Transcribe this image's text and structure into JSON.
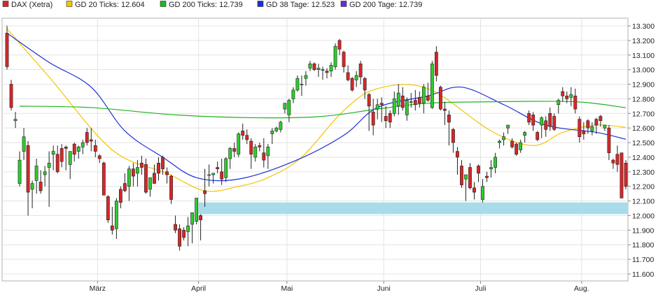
{
  "legend": [
    {
      "label": "DAX (Xetra)",
      "color": "#d62728"
    },
    {
      "label": "GD 20 Ticks: 12.604",
      "color": "#f5c400"
    },
    {
      "label": "GD 200 Ticks: 12.739",
      "color": "#1fb51f"
    },
    {
      "label": "GD 38 Tage: 12.523",
      "color": "#1a2fd6"
    },
    {
      "label": "GD 200 Tage: 12.739",
      "color": "#6a2bd0"
    }
  ],
  "chart_data": {
    "type": "candlestick",
    "title": "",
    "y_axis": {
      "position": "right",
      "min": 11600,
      "max": 13300,
      "ticks": [
        13300,
        13200,
        13100,
        13000,
        12900,
        12800,
        12700,
        12600,
        12500,
        12400,
        12300,
        12200,
        12100,
        12000,
        11900,
        11800,
        11700,
        11600
      ],
      "tick_labels": [
        "13.300",
        "13.200",
        "13.100",
        "13.000",
        "12.900",
        "12.800",
        "12.700",
        "12.600",
        "12.500",
        "12.400",
        "12.300",
        "12.200",
        "12.100",
        "12.000",
        "11.900",
        "11.800",
        "11.700",
        "11.600"
      ]
    },
    "x_axis": {
      "month_labels": [
        {
          "label": "März",
          "index": 22
        },
        {
          "label": "April",
          "index": 46
        },
        {
          "label": "Mai",
          "index": 67
        },
        {
          "label": "Juni",
          "index": 90
        },
        {
          "label": "Juli",
          "index": 113
        },
        {
          "label": "Aug.",
          "index": 137
        }
      ],
      "count": 148
    },
    "grid": true,
    "support_zone": {
      "from": 12010,
      "to": 12090,
      "start_index": 46,
      "color": "#a8dcea"
    },
    "candles": [
      [
        13250,
        13300,
        13000,
        13020
      ],
      [
        12900,
        12930,
        12720,
        12740
      ],
      [
        12650,
        12710,
        12600,
        12660
      ],
      [
        12220,
        12440,
        12200,
        12380
      ],
      [
        12440,
        12600,
        12380,
        12540
      ],
      [
        12480,
        12510,
        12000,
        12160
      ],
      [
        12180,
        12240,
        12050,
        12220
      ],
      [
        12240,
        12390,
        12150,
        12340
      ],
      [
        12230,
        12310,
        12150,
        12170
      ],
      [
        12280,
        12340,
        12200,
        12300
      ],
      [
        12330,
        12440,
        12060,
        12360
      ],
      [
        12420,
        12480,
        12310,
        12440
      ],
      [
        12420,
        12480,
        12290,
        12300
      ],
      [
        12460,
        12490,
        12330,
        12370
      ],
      [
        12470,
        12480,
        12310,
        12460
      ],
      [
        12350,
        12440,
        12250,
        12440
      ],
      [
        12490,
        12500,
        12370,
        12420
      ],
      [
        12440,
        12480,
        12390,
        12470
      ],
      [
        12470,
        12520,
        12420,
        12500
      ],
      [
        12570,
        12600,
        12480,
        12500
      ],
      [
        12520,
        12600,
        12440,
        12510
      ],
      [
        12480,
        12520,
        12400,
        12440
      ],
      [
        12410,
        12420,
        12360,
        12390
      ],
      [
        12360,
        12370,
        12150,
        12140
      ],
      [
        12130,
        12140,
        11950,
        11970
      ],
      [
        11930,
        12060,
        11870,
        11900
      ],
      [
        11910,
        12120,
        11840,
        12100
      ],
      [
        12180,
        12200,
        12050,
        12090
      ],
      [
        12220,
        12290,
        12160,
        12170
      ],
      [
        12200,
        12340,
        12100,
        12320
      ],
      [
        12320,
        12360,
        12200,
        12270
      ],
      [
        12290,
        12380,
        12200,
        12330
      ],
      [
        12360,
        12410,
        12280,
        12330
      ],
      [
        12350,
        12390,
        12150,
        12160
      ],
      [
        12180,
        12260,
        12130,
        12260
      ],
      [
        12290,
        12350,
        12220,
        12220
      ],
      [
        12360,
        12400,
        12240,
        12290
      ],
      [
        12400,
        12410,
        12280,
        12320
      ],
      [
        12300,
        12330,
        12220,
        12280
      ],
      [
        12270,
        12280,
        12080,
        12110
      ],
      [
        11940,
        12000,
        11880,
        11900
      ],
      [
        11910,
        11940,
        11760,
        11790
      ],
      [
        11900,
        11920,
        11830,
        11850
      ],
      [
        11890,
        11990,
        11790,
        11930
      ],
      [
        11940,
        12020,
        11810,
        12020
      ],
      [
        11960,
        12120,
        11940,
        12120
      ],
      [
        12000,
        12010,
        11830,
        11970
      ],
      [
        12170,
        12320,
        12060,
        12150
      ],
      [
        12280,
        12350,
        12200,
        12280
      ],
      [
        12280,
        12290,
        12220,
        12290
      ],
      [
        12330,
        12370,
        12290,
        12320
      ],
      [
        12300,
        12390,
        12210,
        12250
      ],
      [
        12260,
        12400,
        12230,
        12390
      ],
      [
        12390,
        12470,
        12320,
        12460
      ],
      [
        12460,
        12500,
        12400,
        12440
      ],
      [
        12420,
        12570,
        12400,
        12560
      ],
      [
        12580,
        12630,
        12520,
        12550
      ],
      [
        12550,
        12590,
        12490,
        12520
      ],
      [
        12510,
        12530,
        12320,
        12420
      ],
      [
        12400,
        12490,
        12370,
        12470
      ],
      [
        12480,
        12500,
        12440,
        12470
      ],
      [
        12430,
        12530,
        12330,
        12380
      ],
      [
        12410,
        12490,
        12320,
        12470
      ],
      [
        12560,
        12600,
        12490,
        12580
      ],
      [
        12580,
        12610,
        12570,
        12600
      ],
      [
        12590,
        12650,
        12570,
        12640
      ],
      [
        12730,
        12760,
        12700,
        12770
      ],
      [
        12690,
        12800,
        12640,
        12790
      ],
      [
        12800,
        12880,
        12770,
        12860
      ],
      [
        12860,
        12960,
        12850,
        12940
      ],
      [
        12900,
        12960,
        12820,
        12900
      ],
      [
        12940,
        12990,
        12890,
        12960
      ],
      [
        13010,
        13060,
        12990,
        13040
      ],
      [
        13040,
        13050,
        12990,
        13000
      ],
      [
        13000,
        13040,
        12950,
        13010
      ],
      [
        13000,
        13020,
        12930,
        13000
      ],
      [
        12990,
        13010,
        12940,
        12980
      ],
      [
        12990,
        13050,
        12950,
        13030
      ],
      [
        13020,
        13180,
        13000,
        13160
      ],
      [
        13200,
        13210,
        13100,
        13140
      ],
      [
        13120,
        13130,
        12980,
        13020
      ],
      [
        12980,
        13030,
        12920,
        12930
      ],
      [
        12940,
        12950,
        12850,
        12860
      ],
      [
        12930,
        12990,
        12880,
        12960
      ],
      [
        13040,
        13060,
        12900,
        12950
      ],
      [
        12940,
        12950,
        12800,
        12860
      ],
      [
        12830,
        12840,
        12580,
        12750
      ],
      [
        12710,
        12800,
        12550,
        12620
      ],
      [
        12730,
        12800,
        12660,
        12760
      ],
      [
        12770,
        12810,
        12640,
        12760
      ],
      [
        12680,
        12750,
        12600,
        12650
      ],
      [
        12700,
        12720,
        12600,
        12640
      ],
      [
        12700,
        12850,
        12680,
        12800
      ],
      [
        12750,
        12900,
        12690,
        12840
      ],
      [
        12820,
        12880,
        12720,
        12740
      ],
      [
        12690,
        12810,
        12650,
        12790
      ],
      [
        12780,
        12840,
        12740,
        12780
      ],
      [
        12790,
        12860,
        12720,
        12760
      ],
      [
        12810,
        12850,
        12740,
        12770
      ],
      [
        12770,
        12900,
        12700,
        12880
      ],
      [
        12820,
        12910,
        12780,
        12790
      ],
      [
        12740,
        13060,
        12730,
        13040
      ],
      [
        13120,
        13160,
        12920,
        12960
      ],
      [
        12880,
        12890,
        12720,
        12730
      ],
      [
        12730,
        12780,
        12620,
        12720
      ],
      [
        12690,
        12720,
        12480,
        12640
      ],
      [
        12590,
        12600,
        12430,
        12500
      ],
      [
        12440,
        12470,
        12280,
        12400
      ],
      [
        12340,
        12380,
        12190,
        12210
      ],
      [
        12250,
        12270,
        12100,
        12280
      ],
      [
        12330,
        12360,
        12180,
        12190
      ],
      [
        12190,
        12230,
        12110,
        12160
      ],
      [
        12340,
        12350,
        12230,
        12290
      ],
      [
        12110,
        12250,
        12090,
        12200
      ],
      [
        12270,
        12300,
        12230,
        12260
      ],
      [
        12320,
        12380,
        12260,
        12330
      ],
      [
        12330,
        12430,
        12290,
        12400
      ],
      [
        12500,
        12520,
        12460,
        12510
      ],
      [
        12520,
        12570,
        12480,
        12540
      ],
      [
        12600,
        12620,
        12560,
        12620
      ],
      [
        12510,
        12530,
        12460,
        12470
      ],
      [
        12490,
        12500,
        12410,
        12420
      ],
      [
        12450,
        12520,
        12430,
        12500
      ],
      [
        12550,
        12580,
        12500,
        12570
      ],
      [
        12700,
        12720,
        12620,
        12640
      ],
      [
        12690,
        12710,
        12580,
        12620
      ],
      [
        12570,
        12580,
        12510,
        12520
      ],
      [
        12620,
        12680,
        12530,
        12670
      ],
      [
        12650,
        12680,
        12540,
        12590
      ],
      [
        12700,
        12740,
        12580,
        12610
      ],
      [
        12680,
        12700,
        12580,
        12590
      ],
      [
        12760,
        12800,
        12700,
        12790
      ],
      [
        12850,
        12880,
        12780,
        12820
      ],
      [
        12820,
        12850,
        12770,
        12800
      ],
      [
        12810,
        12880,
        12750,
        12830
      ],
      [
        12820,
        12870,
        12700,
        12730
      ],
      [
        12660,
        12680,
        12500,
        12540
      ],
      [
        12580,
        12640,
        12520,
        12560
      ],
      [
        12650,
        12660,
        12560,
        12600
      ],
      [
        12580,
        12640,
        12550,
        12610
      ],
      [
        12660,
        12670,
        12560,
        12620
      ],
      [
        12680,
        12690,
        12610,
        12650
      ],
      [
        12600,
        12620,
        12580,
        12620
      ],
      [
        12600,
        12620,
        12380,
        12430
      ],
      [
        12380,
        12390,
        12320,
        12360
      ],
      [
        12420,
        12480,
        12300,
        12350
      ],
      [
        12430,
        12430,
        12130,
        12120
      ],
      [
        12360,
        12380,
        12180,
        12200
      ]
    ],
    "series": [
      {
        "name": "GD 20 Ticks: 12.604",
        "color": "#f5c400",
        "values": [
          [
            0,
            13280
          ],
          [
            10,
            12950
          ],
          [
            25,
            12450
          ],
          [
            38,
            12290
          ],
          [
            47,
            12170
          ],
          [
            55,
            12200
          ],
          [
            62,
            12260
          ],
          [
            70,
            12400
          ],
          [
            80,
            12720
          ],
          [
            88,
            12870
          ],
          [
            100,
            12870
          ],
          [
            115,
            12580
          ],
          [
            125,
            12480
          ],
          [
            132,
            12570
          ],
          [
            140,
            12620
          ],
          [
            147,
            12604
          ]
        ]
      },
      {
        "name": "GD 38 Tage: 12.523",
        "color": "#1a2fd6",
        "values": [
          [
            0,
            13250
          ],
          [
            10,
            13050
          ],
          [
            20,
            12880
          ],
          [
            28,
            12580
          ],
          [
            37,
            12400
          ],
          [
            45,
            12260
          ],
          [
            55,
            12250
          ],
          [
            68,
            12370
          ],
          [
            80,
            12550
          ],
          [
            88,
            12740
          ],
          [
            100,
            12820
          ],
          [
            108,
            12880
          ],
          [
            118,
            12760
          ],
          [
            128,
            12620
          ],
          [
            140,
            12570
          ],
          [
            147,
            12523
          ]
        ]
      },
      {
        "name": "GD 200 Ticks: 12.739",
        "color": "#1fb51f",
        "values": [
          [
            3,
            12750
          ],
          [
            20,
            12740
          ],
          [
            40,
            12690
          ],
          [
            60,
            12670
          ],
          [
            75,
            12680
          ],
          [
            88,
            12730
          ],
          [
            100,
            12770
          ],
          [
            115,
            12780
          ],
          [
            135,
            12780
          ],
          [
            147,
            12739
          ]
        ]
      }
    ]
  }
}
